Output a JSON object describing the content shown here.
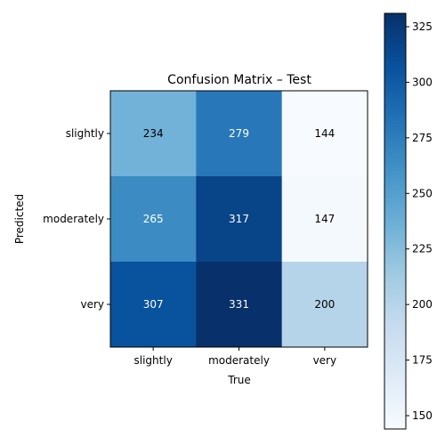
{
  "chart_data": {
    "type": "heatmap",
    "title": "Confusion Matrix – Test",
    "xlabel": "True",
    "ylabel": "Predicted",
    "x_categories": [
      "slightly",
      "moderately",
      "very"
    ],
    "y_categories": [
      "slightly",
      "moderately",
      "very"
    ],
    "values": [
      [
        234,
        279,
        144
      ],
      [
        265,
        317,
        147
      ],
      [
        307,
        331,
        200
      ]
    ],
    "colormap": "Blues",
    "colorbar": {
      "range": [
        144,
        331
      ],
      "ticks": [
        150,
        175,
        200,
        225,
        250,
        275,
        300,
        325
      ]
    },
    "text_colors": {
      "on_dark": "#ffffff",
      "on_light": "#000000"
    }
  }
}
